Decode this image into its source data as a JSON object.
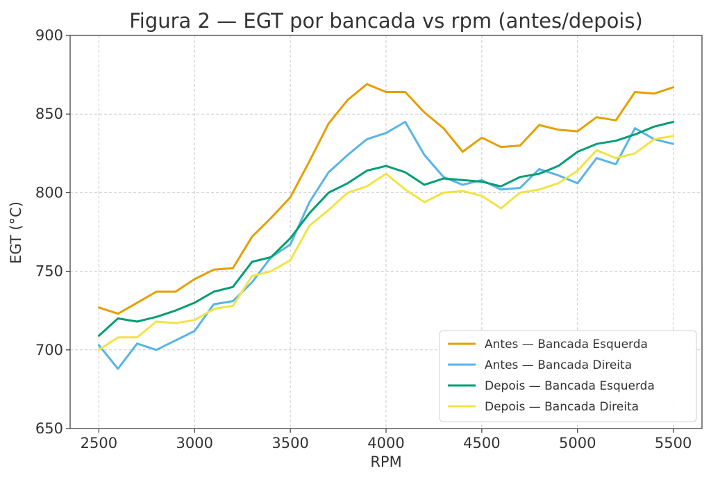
{
  "chart_data": {
    "type": "line",
    "title": "Figura 2 — EGT por bancada vs rpm (antes/depois)",
    "xlabel": "RPM",
    "ylabel": "EGT (°C)",
    "xlim": [
      2350,
      5650
    ],
    "ylim": [
      650,
      900
    ],
    "xticks": [
      2500,
      3000,
      3500,
      4000,
      4500,
      5000,
      5500
    ],
    "yticks": [
      650,
      700,
      750,
      800,
      850,
      900
    ],
    "grid": true,
    "legend_position": "bottom-right",
    "x": [
      2500,
      2600,
      2700,
      2800,
      2900,
      3000,
      3100,
      3200,
      3300,
      3400,
      3500,
      3600,
      3700,
      3800,
      3900,
      4000,
      4100,
      4200,
      4300,
      4400,
      4500,
      4600,
      4700,
      4800,
      4900,
      5000,
      5100,
      5200,
      5300,
      5400,
      5500
    ],
    "series": [
      {
        "name": "Antes — Bancada Esquerda",
        "color": "#E69F00",
        "values": [
          727,
          723,
          730,
          737,
          737,
          745,
          751,
          752,
          772,
          784,
          797,
          820,
          844,
          859,
          869,
          864,
          864,
          851,
          841,
          826,
          835,
          829,
          830,
          843,
          840,
          839,
          848,
          846,
          864,
          863,
          867
        ]
      },
      {
        "name": "Antes — Bancada Direita",
        "color": "#56B4E9",
        "values": [
          703,
          688,
          704,
          700,
          706,
          712,
          729,
          731,
          743,
          759,
          767,
          794,
          813,
          824,
          834,
          838,
          845,
          824,
          810,
          805,
          808,
          802,
          803,
          815,
          811,
          806,
          822,
          818,
          841,
          834,
          831
        ]
      },
      {
        "name": "Depois — Bancada Esquerda",
        "color": "#009E73",
        "values": [
          709,
          720,
          718,
          721,
          725,
          730,
          737,
          740,
          756,
          759,
          771,
          787,
          800,
          806,
          814,
          817,
          813,
          805,
          809,
          808,
          807,
          804,
          810,
          812,
          817,
          826,
          831,
          833,
          837,
          842,
          845
        ]
      },
      {
        "name": "Depois — Bancada Direita",
        "color": "#F0E442",
        "values": [
          700,
          708,
          708,
          718,
          717,
          719,
          726,
          728,
          747,
          750,
          757,
          779,
          789,
          800,
          804,
          812,
          802,
          794,
          800,
          801,
          798,
          790,
          800,
          802,
          806,
          814,
          827,
          822,
          825,
          834,
          836
        ]
      }
    ]
  }
}
